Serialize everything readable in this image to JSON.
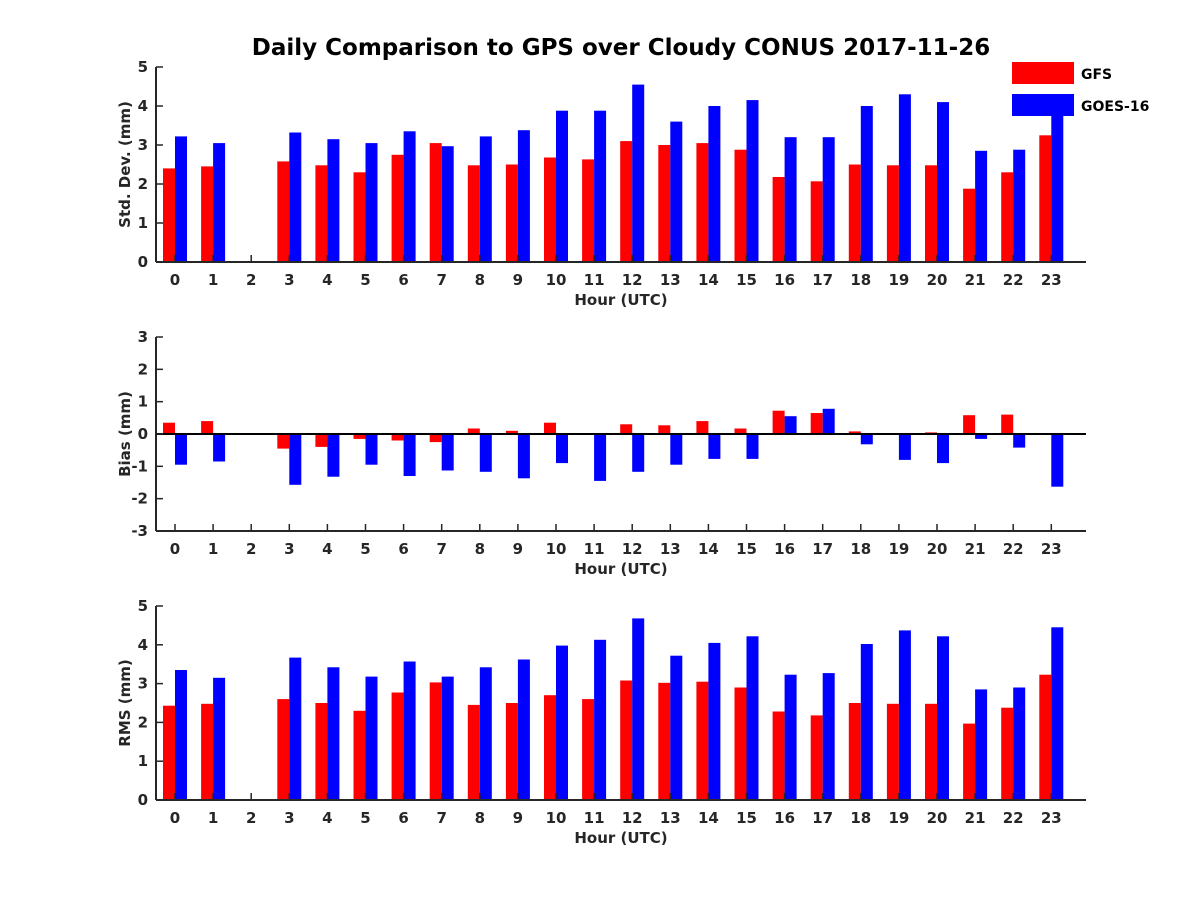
{
  "title": "Daily Comparison to GPS over Cloudy CONUS 2017-11-26",
  "legend": {
    "placement": "top-right",
    "entries": [
      {
        "label": "GFS",
        "color": "#ff0000"
      },
      {
        "label": "GOES-16",
        "color": "#0000ff"
      }
    ]
  },
  "chart_data": [
    {
      "type": "bar",
      "ylabel": "Std. Dev. (mm)",
      "xlabel": "Hour (UTC)",
      "ylim": [
        0,
        5
      ],
      "yticks": [
        0,
        1,
        2,
        3,
        4,
        5
      ],
      "categories": [
        "0",
        "1",
        "2",
        "3",
        "4",
        "5",
        "6",
        "7",
        "8",
        "9",
        "10",
        "11",
        "12",
        "13",
        "14",
        "15",
        "16",
        "17",
        "18",
        "19",
        "20",
        "21",
        "22",
        "23"
      ],
      "series": [
        {
          "name": "GFS",
          "color": "#ff0000",
          "values": [
            2.4,
            2.45,
            null,
            2.58,
            2.48,
            2.3,
            2.75,
            3.05,
            2.48,
            2.5,
            2.68,
            2.63,
            3.1,
            3.0,
            3.05,
            2.88,
            2.18,
            2.07,
            2.5,
            2.48,
            2.48,
            1.88,
            2.3,
            3.25
          ]
        },
        {
          "name": "GOES-16",
          "color": "#0000ff",
          "values": [
            3.22,
            3.05,
            null,
            3.32,
            3.15,
            3.05,
            3.35,
            2.97,
            3.22,
            3.38,
            3.88,
            3.88,
            4.55,
            3.6,
            4.0,
            4.15,
            3.2,
            3.2,
            4.0,
            4.3,
            4.1,
            2.85,
            2.88,
            4.18
          ]
        }
      ]
    },
    {
      "type": "bar",
      "ylabel": "Bias (mm)",
      "xlabel": "Hour (UTC)",
      "ylim": [
        -3,
        3
      ],
      "yticks": [
        -3,
        -2,
        -1,
        0,
        1,
        2,
        3
      ],
      "categories": [
        "0",
        "1",
        "2",
        "3",
        "4",
        "5",
        "6",
        "7",
        "8",
        "9",
        "10",
        "11",
        "12",
        "13",
        "14",
        "15",
        "16",
        "17",
        "18",
        "19",
        "20",
        "21",
        "22",
        "23"
      ],
      "series": [
        {
          "name": "GFS",
          "color": "#ff0000",
          "values": [
            0.35,
            0.4,
            null,
            -0.45,
            -0.4,
            -0.15,
            -0.2,
            -0.25,
            0.17,
            0.1,
            0.35,
            0.02,
            0.3,
            0.27,
            0.4,
            0.17,
            0.72,
            0.65,
            0.08,
            0.0,
            0.05,
            0.58,
            0.6,
            -0.03
          ]
        },
        {
          "name": "GOES-16",
          "color": "#0000ff",
          "values": [
            -0.95,
            -0.85,
            null,
            -1.57,
            -1.32,
            -0.95,
            -1.3,
            -1.13,
            -1.17,
            -1.37,
            -0.9,
            -1.45,
            -1.17,
            -0.95,
            -0.77,
            -0.77,
            0.55,
            0.78,
            -0.32,
            -0.8,
            -0.9,
            -0.15,
            -0.42,
            -1.63
          ]
        }
      ]
    },
    {
      "type": "bar",
      "ylabel": "RMS (mm)",
      "xlabel": "Hour (UTC)",
      "ylim": [
        0,
        5
      ],
      "yticks": [
        0,
        1,
        2,
        3,
        4,
        5
      ],
      "categories": [
        "0",
        "1",
        "2",
        "3",
        "4",
        "5",
        "6",
        "7",
        "8",
        "9",
        "10",
        "11",
        "12",
        "13",
        "14",
        "15",
        "16",
        "17",
        "18",
        "19",
        "20",
        "21",
        "22",
        "23"
      ],
      "series": [
        {
          "name": "GFS",
          "color": "#ff0000",
          "values": [
            2.43,
            2.48,
            null,
            2.6,
            2.5,
            2.3,
            2.77,
            3.03,
            2.45,
            2.5,
            2.7,
            2.6,
            3.08,
            3.02,
            3.05,
            2.9,
            2.28,
            2.18,
            2.5,
            2.48,
            2.48,
            1.97,
            2.38,
            3.23
          ]
        },
        {
          "name": "GOES-16",
          "color": "#0000ff",
          "values": [
            3.35,
            3.15,
            null,
            3.67,
            3.42,
            3.18,
            3.57,
            3.18,
            3.42,
            3.62,
            3.98,
            4.13,
            4.68,
            3.72,
            4.05,
            4.22,
            3.23,
            3.27,
            4.02,
            4.37,
            4.22,
            2.85,
            2.9,
            4.45
          ]
        }
      ]
    }
  ]
}
